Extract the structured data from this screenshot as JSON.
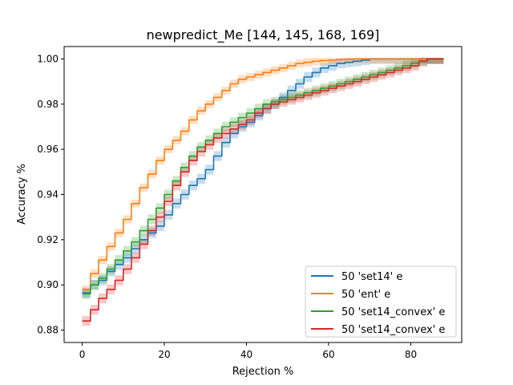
{
  "chart_data": {
    "type": "line",
    "title": "newpredict_Me  [144, 145, 168, 169]",
    "xlabel": "Rejection %",
    "ylabel": "Accuracy %",
    "xlim": [
      -4.4,
      92.4
    ],
    "ylim": [
      0.8745,
      1.0055
    ],
    "xticks": [
      0,
      20,
      40,
      60,
      80
    ],
    "yticks": [
      0.88,
      0.9,
      0.92,
      0.94,
      0.96,
      0.98,
      1.0
    ],
    "ytick_labels": [
      "0.88",
      "0.90",
      "0.92",
      "0.94",
      "0.96",
      "0.98",
      "1.00"
    ],
    "grid": false,
    "legend_position": "lower-right",
    "series": [
      {
        "name": "50 'set14' e",
        "color": "#1f77b4",
        "band": 0.0022,
        "x": [
          0,
          2,
          4,
          6,
          8,
          10,
          12,
          14,
          16,
          18,
          20,
          22,
          24,
          26,
          28,
          30,
          32,
          34,
          36,
          38,
          40,
          42,
          44,
          46,
          48,
          50,
          52,
          54,
          56,
          58,
          60,
          62,
          64,
          66,
          68,
          70,
          72,
          74,
          76,
          78,
          80,
          82,
          84,
          86,
          88
        ],
        "y": [
          0.8965,
          0.9,
          0.902,
          0.906,
          0.909,
          0.912,
          0.916,
          0.92,
          0.923,
          0.926,
          0.931,
          0.936,
          0.94,
          0.944,
          0.947,
          0.951,
          0.957,
          0.963,
          0.967,
          0.97,
          0.972,
          0.975,
          0.978,
          0.98,
          0.983,
          0.986,
          0.989,
          0.992,
          0.994,
          0.996,
          0.997,
          0.998,
          0.9985,
          0.999,
          0.9995,
          1.0,
          1.0,
          1.0,
          1.0,
          1.0,
          1.0,
          1.0,
          1.0,
          1.0,
          1.0
        ]
      },
      {
        "name": "50 'ent' e",
        "color": "#ff7f0e",
        "band": 0.0018,
        "x": [
          0,
          2,
          4,
          6,
          8,
          10,
          12,
          14,
          16,
          18,
          20,
          22,
          24,
          26,
          28,
          30,
          32,
          34,
          36,
          38,
          40,
          42,
          44,
          46,
          48,
          50,
          52,
          54,
          56,
          58,
          60,
          62,
          64,
          66,
          68,
          70,
          72,
          74,
          76,
          78,
          80,
          82,
          84,
          86,
          88
        ],
        "y": [
          0.898,
          0.905,
          0.911,
          0.917,
          0.923,
          0.929,
          0.936,
          0.943,
          0.949,
          0.955,
          0.96,
          0.964,
          0.968,
          0.973,
          0.977,
          0.98,
          0.983,
          0.986,
          0.989,
          0.991,
          0.992,
          0.993,
          0.994,
          0.995,
          0.996,
          0.997,
          0.998,
          0.9985,
          0.999,
          0.9993,
          0.9995,
          0.9997,
          0.9998,
          1.0,
          1.0,
          1.0,
          1.0,
          1.0,
          1.0,
          1.0,
          1.0,
          1.0,
          1.0,
          1.0,
          1.0
        ]
      },
      {
        "name": "50 'set14_convex' e",
        "color": "#2ca02c",
        "band": 0.0022,
        "x": [
          0,
          2,
          4,
          6,
          8,
          10,
          12,
          14,
          16,
          18,
          20,
          22,
          24,
          26,
          28,
          30,
          32,
          34,
          36,
          38,
          40,
          42,
          44,
          46,
          48,
          50,
          52,
          54,
          56,
          58,
          60,
          62,
          64,
          66,
          68,
          70,
          72,
          74,
          76,
          78,
          80,
          82,
          84,
          86,
          88
        ],
        "y": [
          0.896,
          0.9,
          0.903,
          0.907,
          0.911,
          0.915,
          0.919,
          0.924,
          0.929,
          0.934,
          0.94,
          0.946,
          0.952,
          0.957,
          0.961,
          0.964,
          0.967,
          0.97,
          0.972,
          0.974,
          0.976,
          0.978,
          0.98,
          0.981,
          0.982,
          0.983,
          0.984,
          0.985,
          0.986,
          0.987,
          0.988,
          0.989,
          0.99,
          0.991,
          0.992,
          0.993,
          0.994,
          0.995,
          0.996,
          0.997,
          0.998,
          0.999,
          1.0,
          1.0,
          1.0
        ]
      },
      {
        "name": "50 'set14_convex' e",
        "color": "#d62728",
        "band": 0.0022,
        "x": [
          0,
          2,
          4,
          6,
          8,
          10,
          12,
          14,
          16,
          18,
          20,
          22,
          24,
          26,
          28,
          30,
          32,
          34,
          36,
          38,
          40,
          42,
          44,
          46,
          48,
          50,
          52,
          54,
          56,
          58,
          60,
          62,
          64,
          66,
          68,
          70,
          72,
          74,
          76,
          78,
          80,
          82,
          84,
          86,
          88
        ],
        "y": [
          0.884,
          0.889,
          0.894,
          0.898,
          0.902,
          0.907,
          0.912,
          0.918,
          0.924,
          0.93,
          0.937,
          0.944,
          0.95,
          0.955,
          0.959,
          0.962,
          0.965,
          0.967,
          0.969,
          0.971,
          0.973,
          0.976,
          0.978,
          0.98,
          0.981,
          0.982,
          0.983,
          0.984,
          0.985,
          0.986,
          0.987,
          0.988,
          0.989,
          0.99,
          0.991,
          0.992,
          0.993,
          0.994,
          0.995,
          0.996,
          0.997,
          0.999,
          1.0,
          1.0,
          1.0
        ]
      }
    ]
  }
}
